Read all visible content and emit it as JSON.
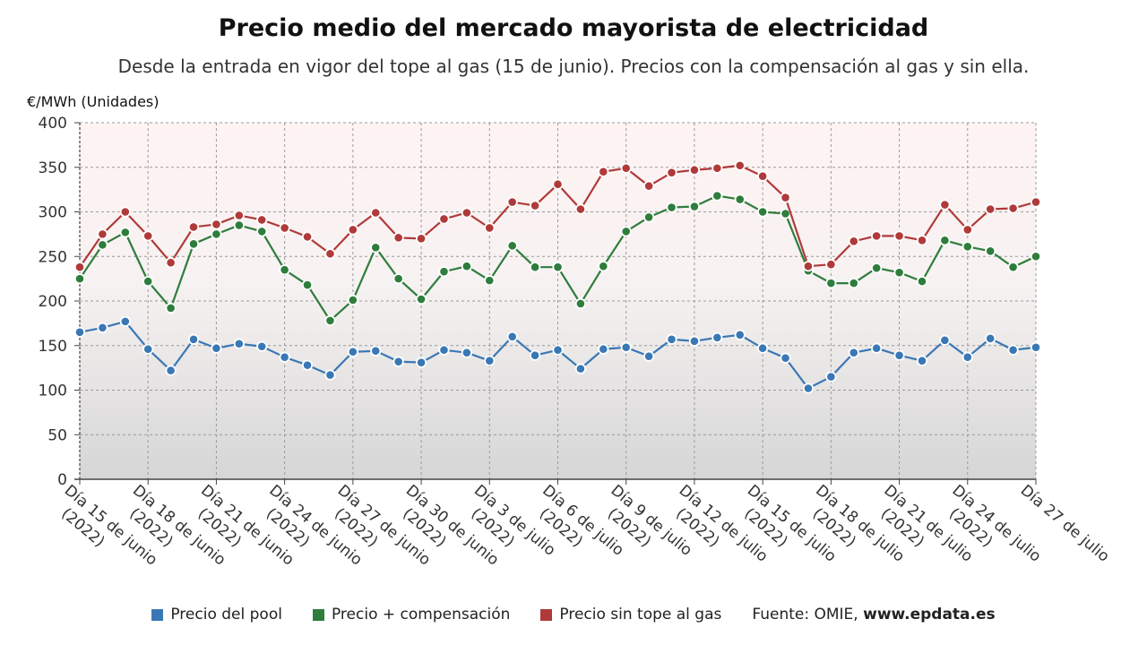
{
  "title": "Precio medio del mercado mayorista de electricidad",
  "subtitle": "Desde la entrada en vigor del tope al gas (15 de junio). Precios con la compensación al gas y sin ella.",
  "source_label": "Fuente: OMIE,",
  "source_site": "www.epdata.es",
  "chart_data": {
    "type": "line",
    "ylabel": "€/MWh (Unidades)",
    "ylim": [
      0,
      400
    ],
    "yticks": [
      0,
      50,
      100,
      150,
      200,
      250,
      300,
      350,
      400
    ],
    "grid": true,
    "legend": "bottom",
    "x_tick_labels": [
      {
        "index": 0,
        "line1": "Día 15 de junio",
        "line2": "(2022)"
      },
      {
        "index": 3,
        "line1": "Día 18 de junio",
        "line2": "(2022)"
      },
      {
        "index": 6,
        "line1": "Día 21 de junio",
        "line2": "(2022)"
      },
      {
        "index": 9,
        "line1": "Día 24 de junio",
        "line2": "(2022)"
      },
      {
        "index": 12,
        "line1": "Día 27 de junio",
        "line2": "(2022)"
      },
      {
        "index": 15,
        "line1": "Día 30 de junio",
        "line2": "(2022)"
      },
      {
        "index": 18,
        "line1": "Día 3 de julio",
        "line2": "(2022)"
      },
      {
        "index": 21,
        "line1": "Día 6 de julio",
        "line2": "(2022)"
      },
      {
        "index": 24,
        "line1": "Día 9 de julio",
        "line2": "(2022)"
      },
      {
        "index": 27,
        "line1": "Día 12 de julio",
        "line2": "(2022)"
      },
      {
        "index": 30,
        "line1": "Día 15 de julio",
        "line2": "(2022)"
      },
      {
        "index": 33,
        "line1": "Día 18 de julio",
        "line2": "(2022)"
      },
      {
        "index": 36,
        "line1": "Día 21 de julio",
        "line2": "(2022)"
      },
      {
        "index": 39,
        "line1": "Día 24 de julio",
        "line2": "(2022)"
      },
      {
        "index": 42,
        "line1": "Día 27 de julio",
        "line2": ""
      }
    ],
    "x": [
      "15 jun",
      "16 jun",
      "17 jun",
      "18 jun",
      "19 jun",
      "20 jun",
      "21 jun",
      "22 jun",
      "23 jun",
      "24 jun",
      "25 jun",
      "26 jun",
      "27 jun",
      "28 jun",
      "29 jun",
      "30 jun",
      "1 jul",
      "2 jul",
      "3 jul",
      "4 jul",
      "5 jul",
      "6 jul",
      "7 jul",
      "8 jul",
      "9 jul",
      "10 jul",
      "11 jul",
      "12 jul",
      "13 jul",
      "14 jul",
      "15 jul",
      "16 jul",
      "17 jul",
      "18 jul",
      "19 jul",
      "20 jul",
      "21 jul",
      "22 jul",
      "23 jul",
      "24 jul",
      "25 jul",
      "26 jul",
      "27 jul"
    ],
    "series": [
      {
        "name": "Precio del pool",
        "color": "#3a78b5",
        "values": [
          165,
          170,
          177,
          146,
          122,
          157,
          147,
          152,
          149,
          137,
          128,
          117,
          143,
          144,
          132,
          131,
          145,
          142,
          133,
          160,
          139,
          145,
          124,
          146,
          148,
          138,
          157,
          155,
          159,
          162,
          147,
          136,
          102,
          115,
          142,
          147,
          139,
          133,
          156,
          137,
          158,
          145,
          148
        ]
      },
      {
        "name": "Precio + compensación",
        "color": "#2e7d3c",
        "values": [
          225,
          263,
          277,
          222,
          192,
          264,
          275,
          285,
          278,
          235,
          218,
          178,
          201,
          260,
          225,
          202,
          233,
          239,
          223,
          262,
          238,
          238,
          197,
          239,
          278,
          294,
          305,
          306,
          318,
          314,
          300,
          298,
          234,
          220,
          220,
          237,
          232,
          222,
          268,
          261,
          256,
          238,
          250
        ]
      },
      {
        "name": "Precio sin tope al gas",
        "color": "#b03a3a",
        "values": [
          238,
          275,
          300,
          273,
          243,
          283,
          286,
          296,
          291,
          282,
          272,
          253,
          280,
          299,
          271,
          270,
          292,
          299,
          282,
          311,
          307,
          331,
          303,
          345,
          349,
          329,
          344,
          347,
          349,
          352,
          340,
          316,
          239,
          241,
          267,
          273,
          273,
          268,
          308,
          280,
          303,
          304,
          311
        ]
      }
    ]
  }
}
